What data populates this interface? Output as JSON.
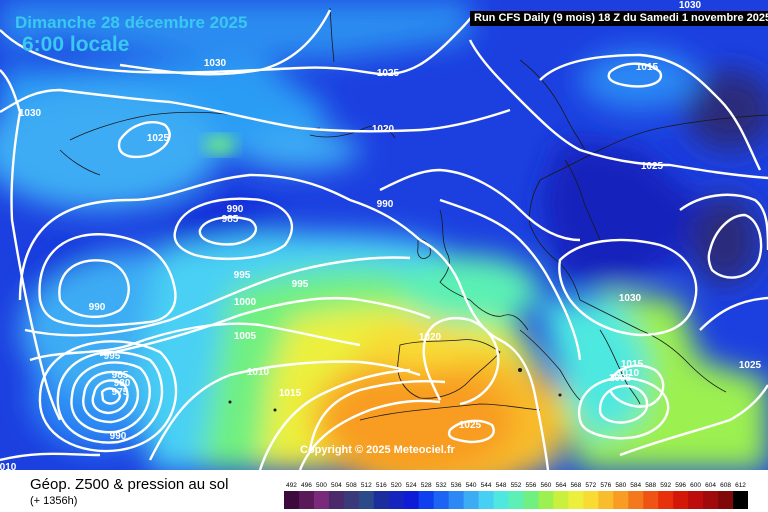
{
  "header": {
    "date": "Dimanche 28 décembre 2025",
    "time": "6:00 locale",
    "run_info": "Run CFS Daily (9 mois) 18 Z du Samedi 1 novembre 2025"
  },
  "footer": {
    "parameter": "Géop. Z500 & pression au sol",
    "lead_time": "(+ 1356h)"
  },
  "copyright": "Copyright © 2025 Meteociel.fr",
  "legend": {
    "values": [
      "492",
      "496",
      "500",
      "504",
      "508",
      "512",
      "516",
      "520",
      "524",
      "528",
      "532",
      "536",
      "540",
      "544",
      "548",
      "552",
      "556",
      "560",
      "564",
      "568",
      "572",
      "576",
      "580",
      "584",
      "588",
      "592",
      "596",
      "600",
      "604",
      "608",
      "612"
    ],
    "colors": [
      "#3c0a3c",
      "#5a1a5a",
      "#7a2a7a",
      "#4a2a6a",
      "#3a3a7a",
      "#2a4a8a",
      "#1c2e9c",
      "#1424bc",
      "#0e1cd8",
      "#0e40f0",
      "#1c64f4",
      "#2c88f4",
      "#3cacf4",
      "#48d0f4",
      "#4ee8e0",
      "#5cf0b4",
      "#70f080",
      "#9cf050",
      "#c8f03c",
      "#ecf03c",
      "#f8dc34",
      "#f8bc2c",
      "#f89c24",
      "#f4781c",
      "#f05414",
      "#e8300c",
      "#d41808",
      "#bc0c0c",
      "#a00a0a",
      "#800808",
      "#000000"
    ]
  },
  "isobar_labels": [
    {
      "text": "1030"
    },
    {
      "text": "1030"
    },
    {
      "text": "1025"
    },
    {
      "text": "1030"
    },
    {
      "text": "1025"
    },
    {
      "text": "1015"
    },
    {
      "text": "1020"
    },
    {
      "text": "1025"
    },
    {
      "text": "990"
    },
    {
      "text": "985"
    },
    {
      "text": "990"
    },
    {
      "text": "990"
    },
    {
      "text": "995"
    },
    {
      "text": "995"
    },
    {
      "text": "1000"
    },
    {
      "text": "1005"
    },
    {
      "text": "995"
    },
    {
      "text": "985"
    },
    {
      "text": "980"
    },
    {
      "text": "975"
    },
    {
      "text": "990"
    },
    {
      "text": "1010"
    },
    {
      "text": "1015"
    },
    {
      "text": "1020"
    },
    {
      "text": "1030"
    },
    {
      "text": "1015"
    },
    {
      "text": "1010"
    },
    {
      "text": "1005"
    },
    {
      "text": "1025"
    },
    {
      "text": "1025"
    },
    {
      "text": "010"
    }
  ]
}
